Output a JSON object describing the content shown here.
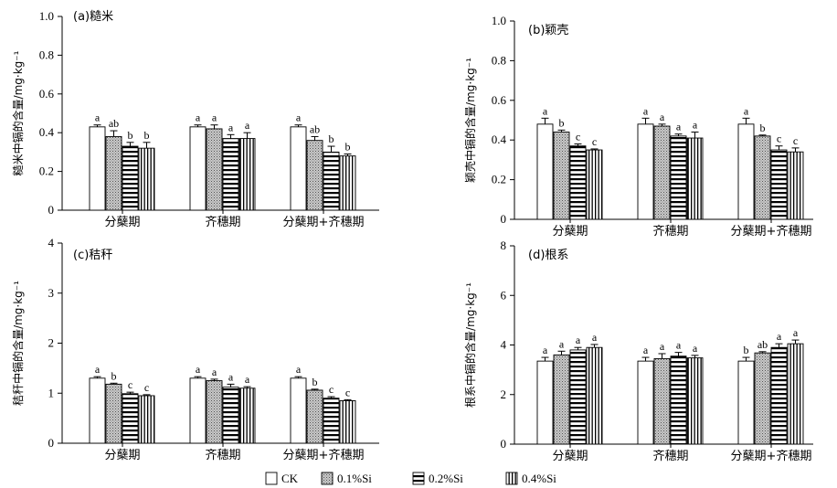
{
  "legend": [
    {
      "name": "CK",
      "pattern": "white"
    },
    {
      "name": "0.1%Si",
      "pattern": "dots"
    },
    {
      "name": "0.2%Si",
      "pattern": "hlines"
    },
    {
      "name": "0.4%Si",
      "pattern": "vlines"
    }
  ],
  "chart_data": [
    {
      "type": "bar",
      "title": "(a)糙米",
      "ylabel": "糙米中镉的含量/mg·kg⁻¹",
      "categories": [
        "分蘖期",
        "齐穗期",
        "分蘖期+齐穗期"
      ],
      "ylim": [
        0,
        1.0
      ],
      "yticks": [
        0,
        0.2,
        0.4,
        0.6,
        0.8,
        1.0
      ],
      "ytick_labels": [
        "0",
        "0.2",
        "0.4",
        "0.6",
        "0.8",
        "1.0"
      ],
      "series": [
        {
          "name": "CK",
          "values": [
            0.43,
            0.43,
            0.43
          ],
          "errors": [
            0.01,
            0.01,
            0.01
          ],
          "letters": [
            "a",
            "a",
            "a"
          ]
        },
        {
          "name": "0.1%Si",
          "values": [
            0.38,
            0.42,
            0.36
          ],
          "errors": [
            0.03,
            0.02,
            0.02
          ],
          "letters": [
            "ab",
            "a",
            "ab"
          ]
        },
        {
          "name": "0.2%Si",
          "values": [
            0.33,
            0.37,
            0.3
          ],
          "errors": [
            0.02,
            0.02,
            0.03
          ],
          "letters": [
            "b",
            "a",
            "b"
          ]
        },
        {
          "name": "0.4%Si",
          "values": [
            0.32,
            0.37,
            0.28
          ],
          "errors": [
            0.03,
            0.03,
            0.01
          ],
          "letters": [
            "b",
            "a",
            "b"
          ]
        }
      ]
    },
    {
      "type": "bar",
      "title": "(b)颖壳",
      "ylabel": "颖壳中镉的含量/mg·kg⁻¹",
      "categories": [
        "分蘖期",
        "齐穗期",
        "分蘖期+齐穗期"
      ],
      "ylim": [
        0,
        1.0
      ],
      "yticks": [
        0,
        0.2,
        0.4,
        0.6,
        0.8,
        1.0
      ],
      "ytick_labels": [
        "0",
        "0.2",
        "0.4",
        "0.6",
        "0.8",
        "1.0"
      ],
      "series": [
        {
          "name": "CK",
          "values": [
            0.48,
            0.48,
            0.48
          ],
          "errors": [
            0.03,
            0.03,
            0.03
          ],
          "letters": [
            "a",
            "a",
            "a"
          ]
        },
        {
          "name": "0.1%Si",
          "values": [
            0.44,
            0.47,
            0.42
          ],
          "errors": [
            0.01,
            0.01,
            0.005
          ],
          "letters": [
            "b",
            "a",
            "b"
          ]
        },
        {
          "name": "0.2%Si",
          "values": [
            0.37,
            0.42,
            0.35
          ],
          "errors": [
            0.01,
            0.01,
            0.02
          ],
          "letters": [
            "c",
            "a",
            "c"
          ]
        },
        {
          "name": "0.4%Si",
          "values": [
            0.35,
            0.41,
            0.34
          ],
          "errors": [
            0.005,
            0.03,
            0.02
          ],
          "letters": [
            "c",
            "a",
            "c"
          ]
        }
      ]
    },
    {
      "type": "bar",
      "title": "(c)秸秆",
      "ylabel": "秸秆中镉的含量/mg·kg⁻¹",
      "categories": [
        "分蘖期",
        "齐穗期",
        "分蘖期+齐穗期"
      ],
      "ylim": [
        0,
        4
      ],
      "yticks": [
        0,
        1,
        2,
        3,
        4
      ],
      "ytick_labels": [
        "0",
        "1",
        "2",
        "3",
        "4"
      ],
      "series": [
        {
          "name": "CK",
          "values": [
            1.3,
            1.3,
            1.3
          ],
          "errors": [
            0.03,
            0.03,
            0.03
          ],
          "letters": [
            "a",
            "a",
            "a"
          ]
        },
        {
          "name": "0.1%Si",
          "values": [
            1.18,
            1.25,
            1.06
          ],
          "errors": [
            0.02,
            0.03,
            0.02
          ],
          "letters": [
            "b",
            "a",
            "b"
          ]
        },
        {
          "name": "0.2%Si",
          "values": [
            0.99,
            1.12,
            0.9
          ],
          "errors": [
            0.03,
            0.06,
            0.03
          ],
          "letters": [
            "c",
            "a",
            "c"
          ]
        },
        {
          "name": "0.4%Si",
          "values": [
            0.95,
            1.1,
            0.85
          ],
          "errors": [
            0.02,
            0.03,
            0.02
          ],
          "letters": [
            "c",
            "a",
            "c"
          ]
        }
      ]
    },
    {
      "type": "bar",
      "title": "(d)根系",
      "ylabel": "根系中镉的含量/mg·kg⁻¹",
      "categories": [
        "分蘖期",
        "齐穗期",
        "分蘖期+齐穗期"
      ],
      "ylim": [
        0,
        8
      ],
      "yticks": [
        0,
        2,
        4,
        6,
        8
      ],
      "ytick_labels": [
        "0",
        "2",
        "4",
        "6",
        "8"
      ],
      "series": [
        {
          "name": "CK",
          "values": [
            3.35,
            3.35,
            3.35
          ],
          "errors": [
            0.15,
            0.15,
            0.15
          ],
          "letters": [
            "a",
            "a",
            "b"
          ]
        },
        {
          "name": "0.1%Si",
          "values": [
            3.6,
            3.45,
            3.68
          ],
          "errors": [
            0.15,
            0.2,
            0.05
          ],
          "letters": [
            "a",
            "a",
            "ab"
          ]
        },
        {
          "name": "0.2%Si",
          "values": [
            3.8,
            3.55,
            3.9
          ],
          "errors": [
            0.1,
            0.15,
            0.15
          ],
          "letters": [
            "a",
            "a",
            "a"
          ]
        },
        {
          "name": "0.4%Si",
          "values": [
            3.9,
            3.48,
            4.05
          ],
          "errors": [
            0.12,
            0.1,
            0.15
          ],
          "letters": [
            "a",
            "a",
            "a"
          ]
        }
      ]
    }
  ]
}
